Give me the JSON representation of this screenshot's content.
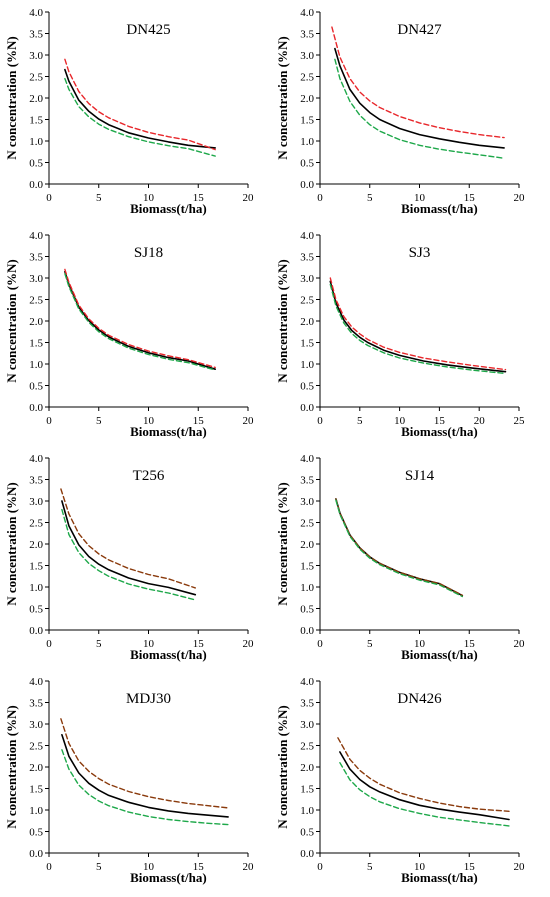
{
  "colors": {
    "fitted": "#000000",
    "red": "#e8272b",
    "green": "#1ea84a",
    "brown": "#8a3a0c"
  },
  "chart_data": [
    {
      "type": "line",
      "title": "DN425",
      "xlabel": "Biomass(t/ha)",
      "ylabel": "N concentration (%N)",
      "xlim": [
        0,
        20
      ],
      "ylim": [
        0,
        4.0
      ],
      "xticks": [
        "0",
        "5",
        "10",
        "15",
        "20"
      ],
      "yticks": [
        "0.0",
        "0.5",
        "1.0",
        "1.5",
        "2.0",
        "2.5",
        "3.0",
        "3.5",
        "4.0"
      ],
      "series": [
        {
          "style": "solid",
          "color": "black",
          "x": [
            1.6,
            2,
            3,
            4,
            5,
            6,
            8,
            10,
            12,
            14,
            16.7
          ],
          "y": [
            2.66,
            2.39,
            1.95,
            1.69,
            1.51,
            1.38,
            1.19,
            1.07,
            0.98,
            0.9,
            0.84
          ]
        },
        {
          "style": "dashed",
          "color": "red",
          "x": [
            1.6,
            2,
            3,
            4,
            5,
            6,
            8,
            10,
            12,
            14,
            16.7
          ],
          "y": [
            2.9,
            2.61,
            2.15,
            1.87,
            1.68,
            1.54,
            1.34,
            1.2,
            1.1,
            1.02,
            0.8
          ]
        },
        {
          "style": "dashed",
          "color": "green",
          "x": [
            1.6,
            2,
            3,
            4,
            5,
            6,
            8,
            10,
            12,
            14,
            16.7
          ],
          "y": [
            2.45,
            2.2,
            1.8,
            1.56,
            1.39,
            1.27,
            1.1,
            0.98,
            0.89,
            0.82,
            0.65
          ]
        }
      ]
    },
    {
      "type": "line",
      "title": "DN427",
      "xlabel": "Biomass(t/ha)",
      "ylabel": "N concentration (%N)",
      "xlim": [
        0,
        20
      ],
      "ylim": [
        0,
        4.0
      ],
      "xticks": [
        "0",
        "5",
        "10",
        "15",
        "20"
      ],
      "yticks": [
        "0.0",
        "0.5",
        "1.0",
        "1.5",
        "2.0",
        "2.5",
        "3.0",
        "3.5",
        "4.0"
      ],
      "series": [
        {
          "style": "solid",
          "color": "black",
          "x": [
            1.5,
            2,
            3,
            4,
            5,
            6,
            8,
            10,
            12,
            14,
            16,
            18.5
          ],
          "y": [
            3.15,
            2.75,
            2.2,
            1.88,
            1.66,
            1.5,
            1.29,
            1.15,
            1.05,
            0.97,
            0.9,
            0.84
          ]
        },
        {
          "style": "dashed",
          "color": "red",
          "x": [
            1.2,
            2,
            3,
            4,
            5,
            6,
            8,
            10,
            12,
            14,
            16,
            18.5
          ],
          "y": [
            3.65,
            2.95,
            2.45,
            2.14,
            1.93,
            1.78,
            1.57,
            1.42,
            1.31,
            1.22,
            1.15,
            1.08
          ]
        },
        {
          "style": "dashed",
          "color": "green",
          "x": [
            1.5,
            2,
            3,
            4,
            5,
            6,
            8,
            10,
            12,
            14,
            16,
            18.5
          ],
          "y": [
            2.9,
            2.45,
            1.92,
            1.6,
            1.38,
            1.23,
            1.03,
            0.9,
            0.81,
            0.74,
            0.68,
            0.6
          ]
        }
      ]
    },
    {
      "type": "line",
      "title": "SJ18",
      "xlabel": "Biomass(t/ha)",
      "ylabel": "N concentration (%N)",
      "xlim": [
        0,
        20
      ],
      "ylim": [
        0,
        4.0
      ],
      "xticks": [
        "0",
        "5",
        "10",
        "15",
        "20"
      ],
      "yticks": [
        "0.0",
        "0.5",
        "1.0",
        "1.5",
        "2.0",
        "2.5",
        "3.0",
        "3.5",
        "4.0"
      ],
      "series": [
        {
          "style": "solid",
          "color": "black",
          "x": [
            1.6,
            2,
            3,
            4,
            5,
            6,
            8,
            10,
            12,
            14,
            16.7
          ],
          "y": [
            3.15,
            2.85,
            2.32,
            2.01,
            1.79,
            1.63,
            1.41,
            1.26,
            1.15,
            1.07,
            0.88
          ]
        },
        {
          "style": "dashed",
          "color": "red",
          "x": [
            1.6,
            2,
            3,
            4,
            5,
            6,
            8,
            10,
            12,
            14,
            16.7
          ],
          "y": [
            3.2,
            2.9,
            2.37,
            2.05,
            1.83,
            1.67,
            1.45,
            1.3,
            1.19,
            1.1,
            0.92
          ]
        },
        {
          "style": "dashed",
          "color": "green",
          "x": [
            1.6,
            2,
            3,
            4,
            5,
            6,
            8,
            10,
            12,
            14,
            16.7
          ],
          "y": [
            3.1,
            2.8,
            2.28,
            1.97,
            1.75,
            1.59,
            1.37,
            1.22,
            1.11,
            1.03,
            0.86
          ]
        }
      ]
    },
    {
      "type": "line",
      "title": "SJ3",
      "xlabel": "Biomass(t/ha)",
      "ylabel": "N concentration (%N)",
      "xlim": [
        0,
        25
      ],
      "ylim": [
        0,
        4.0
      ],
      "xticks": [
        "0",
        "5",
        "10",
        "15",
        "20",
        "25"
      ],
      "yticks": [
        "0.0",
        "0.5",
        "1.0",
        "1.5",
        "2.0",
        "2.5",
        "3.0",
        "3.5",
        "4.0"
      ],
      "series": [
        {
          "style": "solid",
          "color": "black",
          "x": [
            1.3,
            2,
            3,
            4,
            5,
            6,
            8,
            10,
            13,
            16,
            19,
            23.3
          ],
          "y": [
            2.92,
            2.42,
            2.02,
            1.78,
            1.62,
            1.5,
            1.32,
            1.2,
            1.07,
            0.98,
            0.91,
            0.82
          ]
        },
        {
          "style": "dashed",
          "color": "red",
          "x": [
            1.3,
            2,
            3,
            4,
            5,
            6,
            8,
            10,
            13,
            16,
            19,
            23.3
          ],
          "y": [
            3.0,
            2.5,
            2.1,
            1.86,
            1.7,
            1.57,
            1.39,
            1.27,
            1.14,
            1.05,
            0.97,
            0.87
          ]
        },
        {
          "style": "dashed",
          "color": "green",
          "x": [
            1.3,
            2,
            3,
            4,
            5,
            6,
            8,
            10,
            13,
            16,
            19,
            23.3
          ],
          "y": [
            2.85,
            2.35,
            1.95,
            1.71,
            1.55,
            1.43,
            1.26,
            1.14,
            1.02,
            0.93,
            0.86,
            0.78
          ]
        }
      ]
    },
    {
      "type": "line",
      "title": "T256",
      "xlabel": "Biomass(t/ha)",
      "ylabel": "N concentration (%N)",
      "xlim": [
        0,
        20
      ],
      "ylim": [
        0,
        4.0
      ],
      "xticks": [
        "0",
        "5",
        "10",
        "15",
        "20"
      ],
      "yticks": [
        "0.0",
        "0.5",
        "1.0",
        "1.5",
        "2.0",
        "2.5",
        "3.0",
        "3.5",
        "4.0"
      ],
      "series": [
        {
          "style": "solid",
          "color": "black",
          "x": [
            1.3,
            2,
            3,
            4,
            5,
            6,
            8,
            10,
            12,
            14.7
          ],
          "y": [
            3.0,
            2.42,
            1.98,
            1.71,
            1.53,
            1.4,
            1.21,
            1.08,
            0.99,
            0.82
          ]
        },
        {
          "style": "dashed",
          "color": "brown",
          "x": [
            1.2,
            2,
            3,
            4,
            5,
            6,
            8,
            10,
            12,
            14.7
          ],
          "y": [
            3.28,
            2.7,
            2.24,
            1.96,
            1.77,
            1.63,
            1.43,
            1.29,
            1.19,
            0.98
          ]
        },
        {
          "style": "dashed",
          "color": "green",
          "x": [
            1.3,
            2,
            3,
            4,
            5,
            6,
            8,
            10,
            12,
            14.7
          ],
          "y": [
            2.8,
            2.22,
            1.8,
            1.55,
            1.38,
            1.25,
            1.07,
            0.95,
            0.86,
            0.7
          ]
        }
      ]
    },
    {
      "type": "line",
      "title": "SJ14",
      "xlabel": "Biomass(t/ha)",
      "ylabel": "N concentration (%N)",
      "xlim": [
        0,
        20
      ],
      "ylim": [
        0,
        4.0
      ],
      "xticks": [
        "0",
        "5",
        "10",
        "15",
        "20"
      ],
      "yticks": [
        "0.0",
        "0.5",
        "1.0",
        "1.5",
        "2.0",
        "2.5",
        "3.0",
        "3.5",
        "4.0"
      ],
      "series": [
        {
          "style": "solid",
          "color": "black",
          "x": [
            1.6,
            2,
            3,
            4,
            5,
            6,
            8,
            10,
            12,
            14.3
          ],
          "y": [
            3.05,
            2.72,
            2.21,
            1.91,
            1.7,
            1.55,
            1.34,
            1.19,
            1.08,
            0.8
          ]
        },
        {
          "style": "dashed",
          "color": "brown",
          "x": [
            1.6,
            2,
            3,
            4,
            5,
            6,
            8,
            10,
            12,
            14.3
          ],
          "y": [
            3.05,
            2.72,
            2.21,
            1.91,
            1.7,
            1.55,
            1.34,
            1.19,
            1.08,
            0.81
          ]
        },
        {
          "style": "dashed",
          "color": "green",
          "x": [
            1.6,
            2,
            3,
            4,
            5,
            6,
            8,
            10,
            12,
            14.3
          ],
          "y": [
            3.02,
            2.69,
            2.18,
            1.88,
            1.67,
            1.52,
            1.31,
            1.16,
            1.05,
            0.78
          ]
        }
      ]
    },
    {
      "type": "line",
      "title": "MDJ30",
      "xlabel": "Biomass(t/ha)",
      "ylabel": "N concentration (%N)",
      "xlim": [
        0,
        20
      ],
      "ylim": [
        0,
        4.0
      ],
      "xticks": [
        "0",
        "5",
        "10",
        "15",
        "20"
      ],
      "yticks": [
        "0.0",
        "0.5",
        "1.0",
        "1.5",
        "2.0",
        "2.5",
        "3.0",
        "3.5",
        "4.0"
      ],
      "series": [
        {
          "style": "solid",
          "color": "black",
          "x": [
            1.3,
            2,
            3,
            4,
            5,
            6,
            8,
            10,
            12,
            14,
            16,
            18
          ],
          "y": [
            2.75,
            2.25,
            1.86,
            1.62,
            1.46,
            1.34,
            1.18,
            1.06,
            0.98,
            0.92,
            0.88,
            0.84
          ]
        },
        {
          "style": "dashed",
          "color": "brown",
          "x": [
            1.2,
            2,
            3,
            4,
            5,
            6,
            8,
            10,
            12,
            14,
            16,
            18
          ],
          "y": [
            3.12,
            2.55,
            2.14,
            1.9,
            1.73,
            1.6,
            1.43,
            1.31,
            1.22,
            1.15,
            1.1,
            1.05
          ]
        },
        {
          "style": "dashed",
          "color": "green",
          "x": [
            1.3,
            2,
            3,
            4,
            5,
            6,
            8,
            10,
            12,
            14,
            16,
            18
          ],
          "y": [
            2.4,
            1.95,
            1.58,
            1.36,
            1.21,
            1.1,
            0.95,
            0.85,
            0.78,
            0.73,
            0.69,
            0.66
          ]
        }
      ]
    },
    {
      "type": "line",
      "title": "DN426",
      "xlabel": "Biomass(t/ha)",
      "ylabel": "N concentration (%N)",
      "xlim": [
        0,
        20
      ],
      "ylim": [
        0,
        4.0
      ],
      "xticks": [
        "0",
        "5",
        "10",
        "15",
        "20"
      ],
      "yticks": [
        "0.0",
        "0.5",
        "1.0",
        "1.5",
        "2.0",
        "2.5",
        "3.0",
        "3.5",
        "4.0"
      ],
      "series": [
        {
          "style": "solid",
          "color": "black",
          "x": [
            2,
            3,
            4,
            5,
            6,
            8,
            10,
            12,
            14,
            16,
            19
          ],
          "y": [
            2.35,
            1.95,
            1.71,
            1.54,
            1.42,
            1.24,
            1.11,
            1.02,
            0.95,
            0.89,
            0.78
          ]
        },
        {
          "style": "dashed",
          "color": "brown",
          "x": [
            1.8,
            3,
            4,
            5,
            6,
            8,
            10,
            12,
            14,
            16,
            19
          ],
          "y": [
            2.68,
            2.18,
            1.92,
            1.74,
            1.6,
            1.4,
            1.27,
            1.16,
            1.08,
            1.02,
            0.97
          ]
        },
        {
          "style": "dashed",
          "color": "green",
          "x": [
            2,
            3,
            4,
            5,
            6,
            8,
            10,
            12,
            14,
            16,
            19
          ],
          "y": [
            2.1,
            1.7,
            1.47,
            1.31,
            1.19,
            1.03,
            0.92,
            0.83,
            0.77,
            0.71,
            0.63
          ]
        }
      ]
    }
  ]
}
